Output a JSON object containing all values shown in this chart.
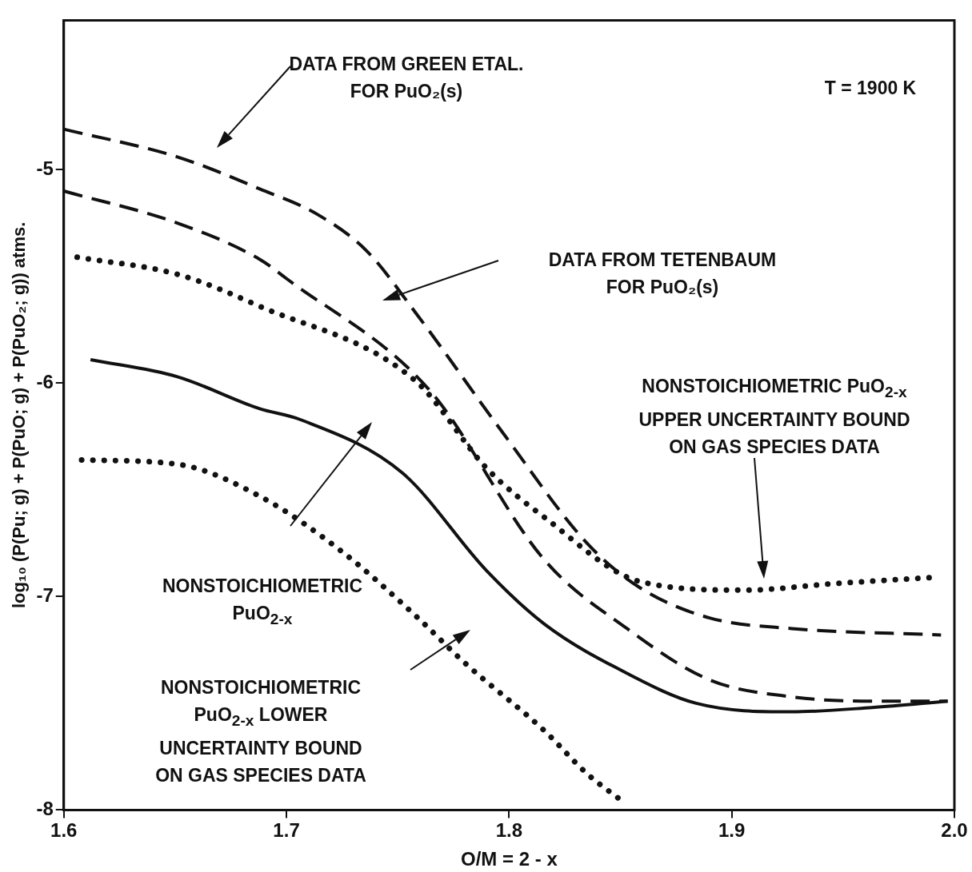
{
  "chart_data": {
    "type": "line",
    "xlabel": "O/M = 2 - x",
    "ylabel": "log₁₀ (P(Pu; g) + P(PuO; g) + P(PuO₂; g)) atms.",
    "xlim": [
      1.6,
      2.0
    ],
    "xticks": [
      1.6,
      1.7,
      1.8,
      1.9,
      {
        "value": 2.0,
        "label": "2.0"
      }
    ],
    "ylim": [
      -8,
      -4.3
    ],
    "yticks": [
      -8,
      -7,
      -6,
      -5
    ],
    "grid": false,
    "legend": false,
    "marker": "none",
    "series": [
      {
        "color": "#111111",
        "line_style": "dashed",
        "x": [
          1.6,
          1.651,
          1.688,
          1.714,
          1.736,
          1.758,
          1.797,
          1.835,
          1.859,
          1.89,
          1.927,
          1.994
        ],
        "values": [
          -4.81,
          -4.94,
          -5.09,
          -5.21,
          -5.38,
          -5.67,
          -6.23,
          -6.75,
          -6.96,
          -7.1,
          -7.15,
          -7.18
        ]
      },
      {
        "color": "#111111",
        "line_style": "dashed",
        "x": [
          1.6,
          1.651,
          1.688,
          1.7,
          1.764,
          1.816,
          1.853,
          1.89,
          1.927,
          1.963,
          1.997
        ],
        "values": [
          -5.1,
          -5.25,
          -5.42,
          -5.51,
          -6.03,
          -6.83,
          -7.15,
          -7.39,
          -7.47,
          -7.49,
          -7.49
        ]
      },
      {
        "color": "#111111",
        "line_style": "dotted",
        "x": [
          1.606,
          1.651,
          1.688,
          1.758,
          1.79,
          1.816,
          1.859,
          1.906,
          1.945,
          1.991
        ],
        "values": [
          -5.41,
          -5.49,
          -5.64,
          -5.99,
          -6.4,
          -6.63,
          -6.93,
          -6.97,
          -6.94,
          -6.91
        ]
      },
      {
        "color": "#111111",
        "line_style": "solid",
        "x": [
          1.612,
          1.651,
          1.688,
          1.706,
          1.752,
          1.79,
          1.816,
          1.853,
          1.884,
          1.927,
          1.963,
          1.997
        ],
        "values": [
          -5.89,
          -5.97,
          -6.12,
          -6.17,
          -6.42,
          -6.88,
          -7.13,
          -7.36,
          -7.5,
          -7.54,
          -7.52,
          -7.49
        ]
      },
      {
        "color": "#111111",
        "line_style": "dotted",
        "x": [
          1.608,
          1.651,
          1.688,
          1.725,
          1.758,
          1.78,
          1.816,
          1.835,
          1.851
        ],
        "values": [
          -6.36,
          -6.38,
          -6.53,
          -6.79,
          -7.09,
          -7.31,
          -7.63,
          -7.83,
          -7.96
        ]
      }
    ],
    "annotations": [
      "DATA FROM GREEN ETAL.\nFOR PuO₂(s)",
      "DATA FROM TETENBAUM\nFOR PuO₂(s)",
      "NONSTOICHIOMETRIC PuO$_{2-x}$\nUPPER UNCERTAINTY BOUND\nON GAS SPECIES DATA",
      "NONSTOICHIOMETRIC\nPuO$_{2-x}$",
      "NONSTOICHIOMETRIC\nPuO$_{2-x}$ LOWER\nUNCERTAINTY BOUND\nON GAS SPECIES DATA",
      "T = 1900 K"
    ]
  }
}
